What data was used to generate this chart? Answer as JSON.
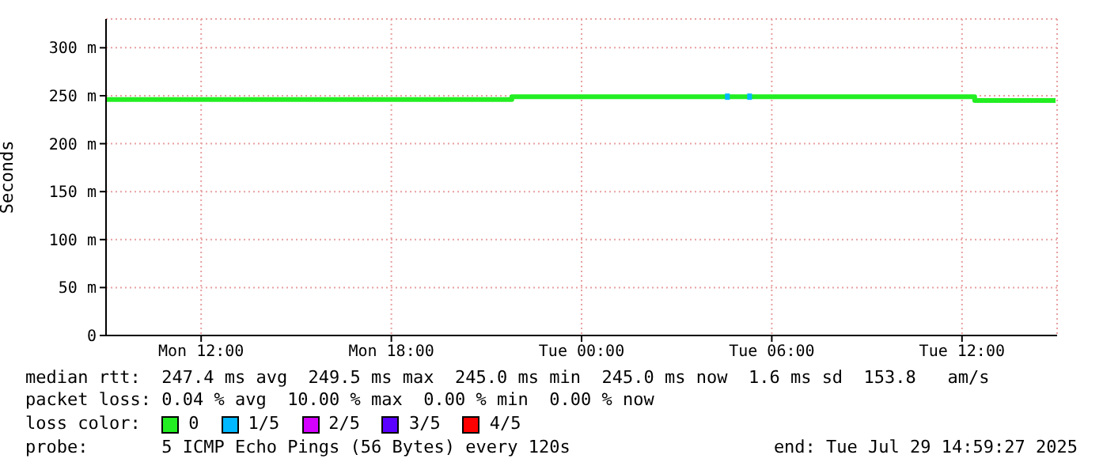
{
  "chart_data": {
    "type": "line",
    "ylabel": "Seconds",
    "legend_title": "loss color:",
    "legend": "bottom",
    "xlim": [
      "2025-07-28T09:00",
      "2025-07-29T15:00"
    ],
    "xticks": [
      {
        "value": "2025-07-28T12:00",
        "label": "Mon 12:00"
      },
      {
        "value": "2025-07-28T18:00",
        "label": "Mon 18:00"
      },
      {
        "value": "2025-07-29T00:00",
        "label": "Tue 00:00"
      },
      {
        "value": "2025-07-29T06:00",
        "label": "Tue 06:00"
      },
      {
        "value": "2025-07-29T12:00",
        "label": "Tue 12:00"
      }
    ],
    "ylim": [
      0,
      330
    ],
    "yticks": [
      0,
      {
        "value": 50,
        "label": "50 m"
      },
      {
        "value": 100,
        "label": "100 m"
      },
      {
        "value": 150,
        "label": "150 m"
      },
      {
        "value": 200,
        "label": "200 m"
      },
      {
        "value": 250,
        "label": "250 m"
      },
      {
        "value": 300,
        "label": "300 m"
      }
    ],
    "grid": true,
    "series": [
      {
        "name": "0",
        "color": "#22ee22",
        "x": [
          "2025-07-28T09:00",
          "2025-07-28T21:48",
          "2025-07-28T21:48",
          "2025-07-29T12:24",
          "2025-07-29T12:24",
          "2025-07-29T14:57"
        ],
        "values": [
          246,
          246,
          249,
          249,
          245,
          245
        ]
      },
      {
        "name": "1/5",
        "color": "#00b8ff",
        "type": "scatter",
        "x": [
          "2025-07-29T04:36",
          "2025-07-29T05:18"
        ],
        "values": [
          249,
          249
        ]
      },
      {
        "name": "2/5",
        "color": "#d400ff"
      },
      {
        "name": "3/5",
        "color": "#5a00ff"
      },
      {
        "name": "4/5",
        "color": "#ff0000"
      }
    ],
    "annotations": [
      "median rtt:  247.4 ms avg  249.5 ms max  245.0 ms min  245.0 ms now  1.6 ms sd  153.8   am/s",
      "packet loss: 0.04 % avg  10.00 % max  0.00 % min  0.00 % now",
      "probe:       5 ICMP Echo Pings (56 Bytes) every 120s",
      "end: Tue Jul 29 14:59:27 2025"
    ]
  }
}
